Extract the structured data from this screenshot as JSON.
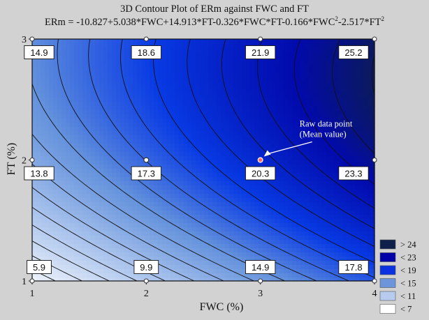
{
  "chart_data": {
    "type": "contour",
    "title": "3D Contour Plot of ERm against FWC and FT",
    "equation": {
      "parts": [
        "ERm = -10.827+5.038*FWC+14.913*FT-0.326*FWC*FT-0.166*FWC",
        "2",
        "-2.517*FT",
        "2"
      ]
    },
    "xlabel": "FWC (%)",
    "ylabel": "FT (%)",
    "xlim": [
      1,
      4
    ],
    "ylim": [
      1,
      3
    ],
    "x_ticks": [
      "1",
      "2",
      "3",
      "4"
    ],
    "y_ticks": [
      "1",
      "2",
      "3"
    ],
    "model": {
      "intercept": -10.827,
      "x": 5.038,
      "y": 14.913,
      "xy": -0.326,
      "x2": -0.166,
      "y2": -2.517
    },
    "contour_levels": [
      6,
      7,
      8,
      9,
      10,
      11,
      12,
      13,
      14,
      15,
      16,
      17,
      18,
      19,
      20,
      21,
      22,
      23,
      24,
      25
    ],
    "color_bands": [
      {
        "label": "> 24",
        "color": "#0d1f4a"
      },
      {
        "label": "< 23",
        "color": "#0000a8"
      },
      {
        "label": "< 19",
        "color": "#0a32e0"
      },
      {
        "label": "< 15",
        "color": "#6d95dc"
      },
      {
        "label": "< 11",
        "color": "#b6cbee"
      },
      {
        "label": "< 7",
        "color": "#ffffff"
      }
    ],
    "value_labels": [
      {
        "x": 1,
        "y": 3,
        "text": "14.9"
      },
      {
        "x": 2,
        "y": 3,
        "text": "18.6"
      },
      {
        "x": 3,
        "y": 3,
        "text": "21.9"
      },
      {
        "x": 4,
        "y": 3,
        "text": "25.2"
      },
      {
        "x": 1,
        "y": 2,
        "text": "13.8"
      },
      {
        "x": 2,
        "y": 2,
        "text": "17.3"
      },
      {
        "x": 3,
        "y": 2,
        "text": "20.3"
      },
      {
        "x": 4,
        "y": 2,
        "text": "23.3"
      },
      {
        "x": 1,
        "y": 1,
        "text": "5.9"
      },
      {
        "x": 2,
        "y": 1,
        "text": "9.9"
      },
      {
        "x": 3,
        "y": 1,
        "text": "14.9"
      },
      {
        "x": 4,
        "y": 1,
        "text": "17.8"
      }
    ],
    "raw_points": [
      {
        "x": 2,
        "y": 2
      },
      {
        "x": 3,
        "y": 2
      }
    ],
    "highlight_point": {
      "x": 3,
      "y": 2
    },
    "annotation": [
      "Raw data point",
      "(Mean value)"
    ],
    "legend_position": "bottom-right"
  }
}
